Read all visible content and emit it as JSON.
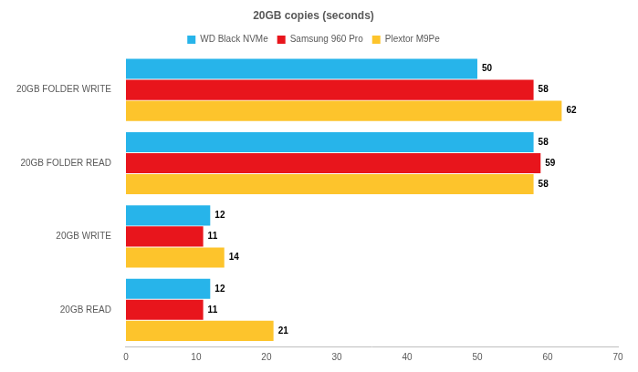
{
  "chart_data": {
    "type": "bar",
    "orientation": "horizontal",
    "title": "20GB copies (seconds)",
    "categories": [
      "20GB FOLDER WRITE",
      "20GB FOLDER READ",
      "20GB WRITE",
      "20GB READ"
    ],
    "series": [
      {
        "name": "WD Black NVMe",
        "color": "#27b4ea",
        "values": [
          50,
          58,
          12,
          12
        ]
      },
      {
        "name": "Samsung 960 Pro",
        "color": "#e8151c",
        "values": [
          58,
          59,
          11,
          11
        ]
      },
      {
        "name": "Plextor M9Pe",
        "color": "#fdc42c",
        "values": [
          62,
          58,
          14,
          21
        ]
      }
    ],
    "xlim": [
      0,
      70
    ],
    "xticks": [
      0,
      10,
      20,
      30,
      40,
      50,
      60,
      70
    ],
    "grid": false,
    "legend": "top",
    "data_labels": true
  }
}
